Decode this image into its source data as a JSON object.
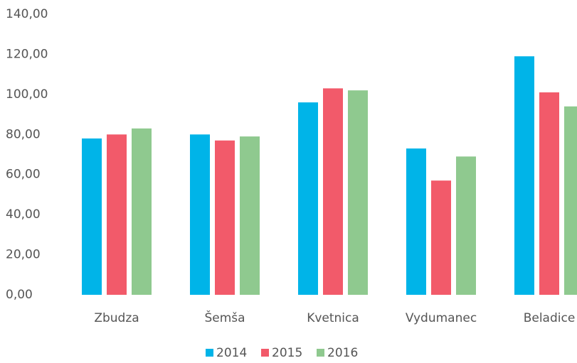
{
  "chart_data": {
    "type": "bar",
    "categories": [
      "Zbudza",
      "Šemša",
      "Kvetnica",
      "Vydumanec",
      "Beladice"
    ],
    "series": [
      {
        "name": "2014",
        "color": "#00b4e8",
        "values": [
          78,
          80,
          96,
          73,
          119
        ]
      },
      {
        "name": "2015",
        "color": "#f25a6a",
        "values": [
          80,
          77,
          103,
          57,
          101
        ]
      },
      {
        "name": "2016",
        "color": "#8fc98f",
        "values": [
          83,
          79,
          102,
          69,
          94
        ]
      }
    ],
    "ylim": [
      0,
      140
    ],
    "yticks": [
      {
        "value": 0,
        "label": "0,00"
      },
      {
        "value": 20,
        "label": "20,00"
      },
      {
        "value": 40,
        "label": "40,00"
      },
      {
        "value": 60,
        "label": "60,00"
      },
      {
        "value": 80,
        "label": "80,00"
      },
      {
        "value": 100,
        "label": "100,00"
      },
      {
        "value": 120,
        "label": "120,00"
      },
      {
        "value": 140,
        "label": "140,00"
      }
    ],
    "grid": false,
    "legend": "bottom"
  }
}
